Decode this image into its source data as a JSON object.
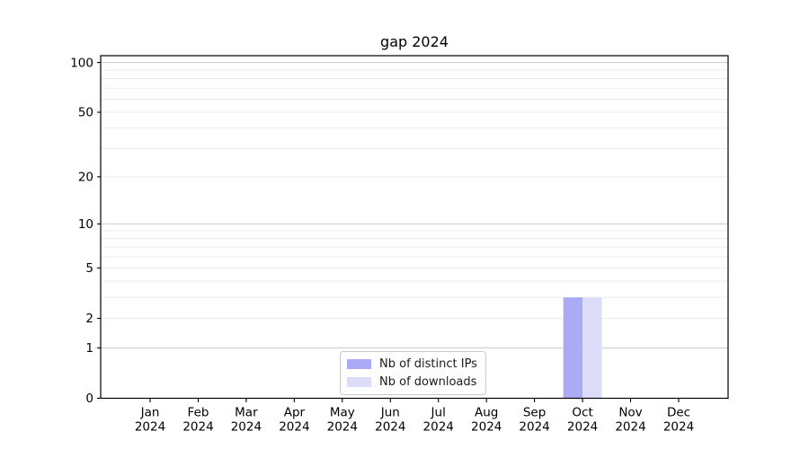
{
  "chart_data": {
    "type": "bar",
    "title": "gap 2024",
    "categories": [
      "Jan 2024",
      "Feb 2024",
      "Mar 2024",
      "Apr 2024",
      "May 2024",
      "Jun 2024",
      "Jul 2024",
      "Aug 2024",
      "Sep 2024",
      "Oct 2024",
      "Nov 2024",
      "Dec 2024"
    ],
    "series": [
      {
        "name": "Nb of distinct IPs",
        "color": "#aaaaf6",
        "values": [
          0,
          0,
          0,
          0,
          0,
          0,
          0,
          0,
          0,
          3,
          0,
          0
        ]
      },
      {
        "name": "Nb of downloads",
        "color": "#dcdcf9",
        "values": [
          0,
          0,
          0,
          0,
          0,
          0,
          0,
          0,
          0,
          3,
          0,
          0
        ]
      }
    ],
    "yscale": "log1p",
    "ylim": [
      0,
      110
    ],
    "yticks": [
      0,
      1,
      2,
      5,
      10,
      20,
      50,
      100
    ],
    "grid": {
      "major_lines": [
        1,
        10,
        100
      ],
      "minor_lines": [
        2,
        3,
        4,
        5,
        6,
        7,
        8,
        9,
        20,
        30,
        40,
        50,
        60,
        70,
        80,
        90
      ],
      "major_color": "#c9c9c9",
      "minor_color": "#e9e9e9"
    },
    "legend_position": "lower center",
    "xlabel": "",
    "ylabel": ""
  },
  "colors": {
    "background": "#ffffff",
    "axis": "#000000",
    "text": "#000000"
  }
}
